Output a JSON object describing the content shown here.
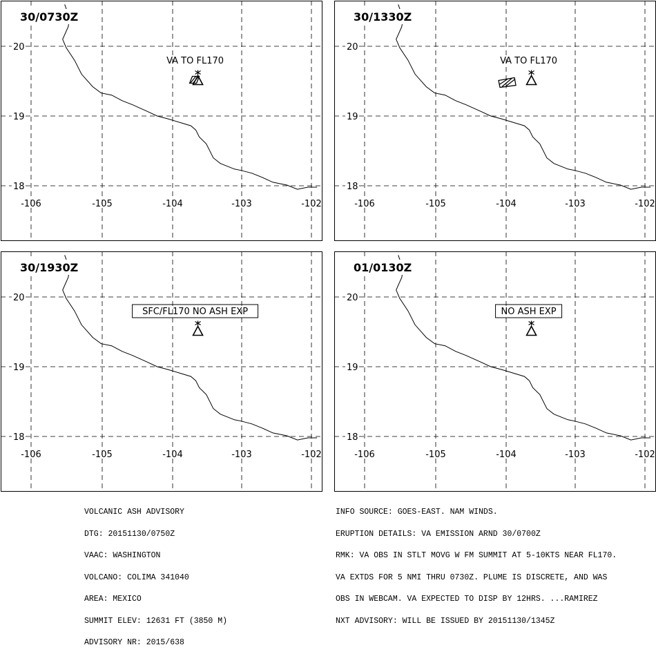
{
  "panels": [
    {
      "time": "30/0730Z",
      "label": "VA TO FL170",
      "boxed": false,
      "ash": "poly1"
    },
    {
      "time": "30/1330Z",
      "label": "VA TO FL170",
      "boxed": false,
      "ash": "poly2"
    },
    {
      "time": "30/1930Z",
      "label": "SFC/FL170 NO ASH EXP",
      "boxed": true,
      "ash": "none"
    },
    {
      "time": "01/0130Z",
      "label": "NO ASH EXP",
      "boxed": true,
      "ash": "none"
    }
  ],
  "map": {
    "lat_labels": [
      "20",
      "19",
      "18"
    ],
    "lon_labels": [
      "-106",
      "-105",
      "-104",
      "-103",
      "-102"
    ],
    "volcano": {
      "name": "COLIMA",
      "lon": -103.62,
      "lat": 19.51
    }
  },
  "advisory_left": [
    "VOLCANIC ASH ADVISORY",
    "DTG: 20151130/0750Z",
    "VAAC: WASHINGTON",
    "VOLCANO: COLIMA 341040",
    "AREA: MEXICO",
    "SUMMIT ELEV: 12631 FT (3850 M)",
    "ADVISORY NR: 2015/638"
  ],
  "advisory_right": [
    "INFO SOURCE: GOES-EAST. NAM WINDS.",
    "ERUPTION DETAILS: VA EMISSION ARND 30/0700Z",
    "RMK: VA OBS IN STLT MOVG W FM SUMMIT AT 5-10KTS NEAR FL170.",
    "VA EXTDS FOR 5 NMI THRU 0730Z. PLUME IS DISCRETE, AND WAS",
    "OBS IN WEBCAM. VA EXPECTED TO DISP BY 12HRS. ...RAMIREZ",
    "NXT ADVISORY: WILL BE ISSUED BY 20151130/1345Z"
  ]
}
